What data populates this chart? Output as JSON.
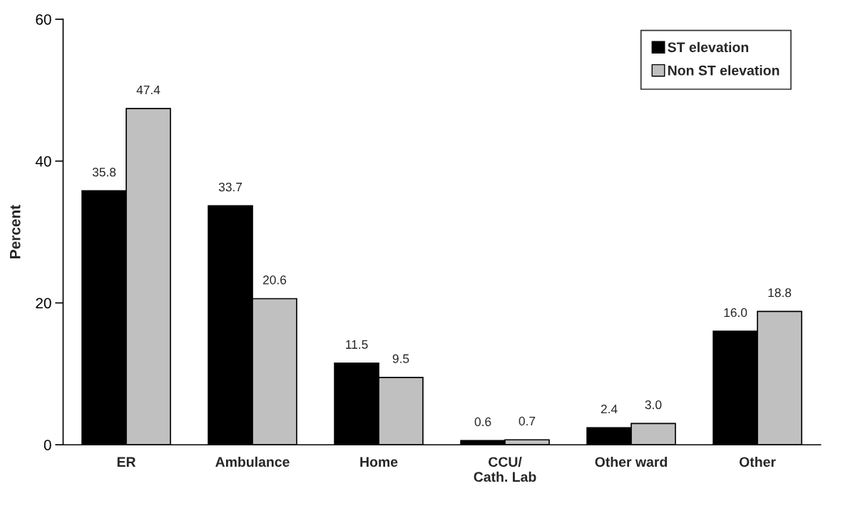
{
  "chart_data": {
    "type": "bar",
    "ylabel": "Percent",
    "categories": [
      "ER",
      "Ambulance",
      "Home",
      "CCU/\nCath. Lab",
      "Other ward",
      "Other"
    ],
    "series": [
      {
        "name": "ST elevation",
        "color": "#000000",
        "values": [
          35.8,
          33.7,
          11.5,
          0.6,
          2.4,
          16.0
        ],
        "value_labels": [
          "35.8",
          "33.7",
          "11.5",
          "0.6",
          "2.4",
          "16.0"
        ]
      },
      {
        "name": "Non ST elevation",
        "color": "#c0c0c0",
        "values": [
          47.4,
          20.6,
          9.5,
          0.7,
          3.0,
          18.8
        ],
        "value_labels": [
          "47.4",
          "20.6",
          "9.5",
          "0.7",
          "3.0",
          "18.8"
        ]
      }
    ],
    "ylim": [
      0,
      60
    ],
    "yticks": [
      0,
      20,
      40,
      60
    ],
    "grid": false,
    "legend": "top right"
  }
}
